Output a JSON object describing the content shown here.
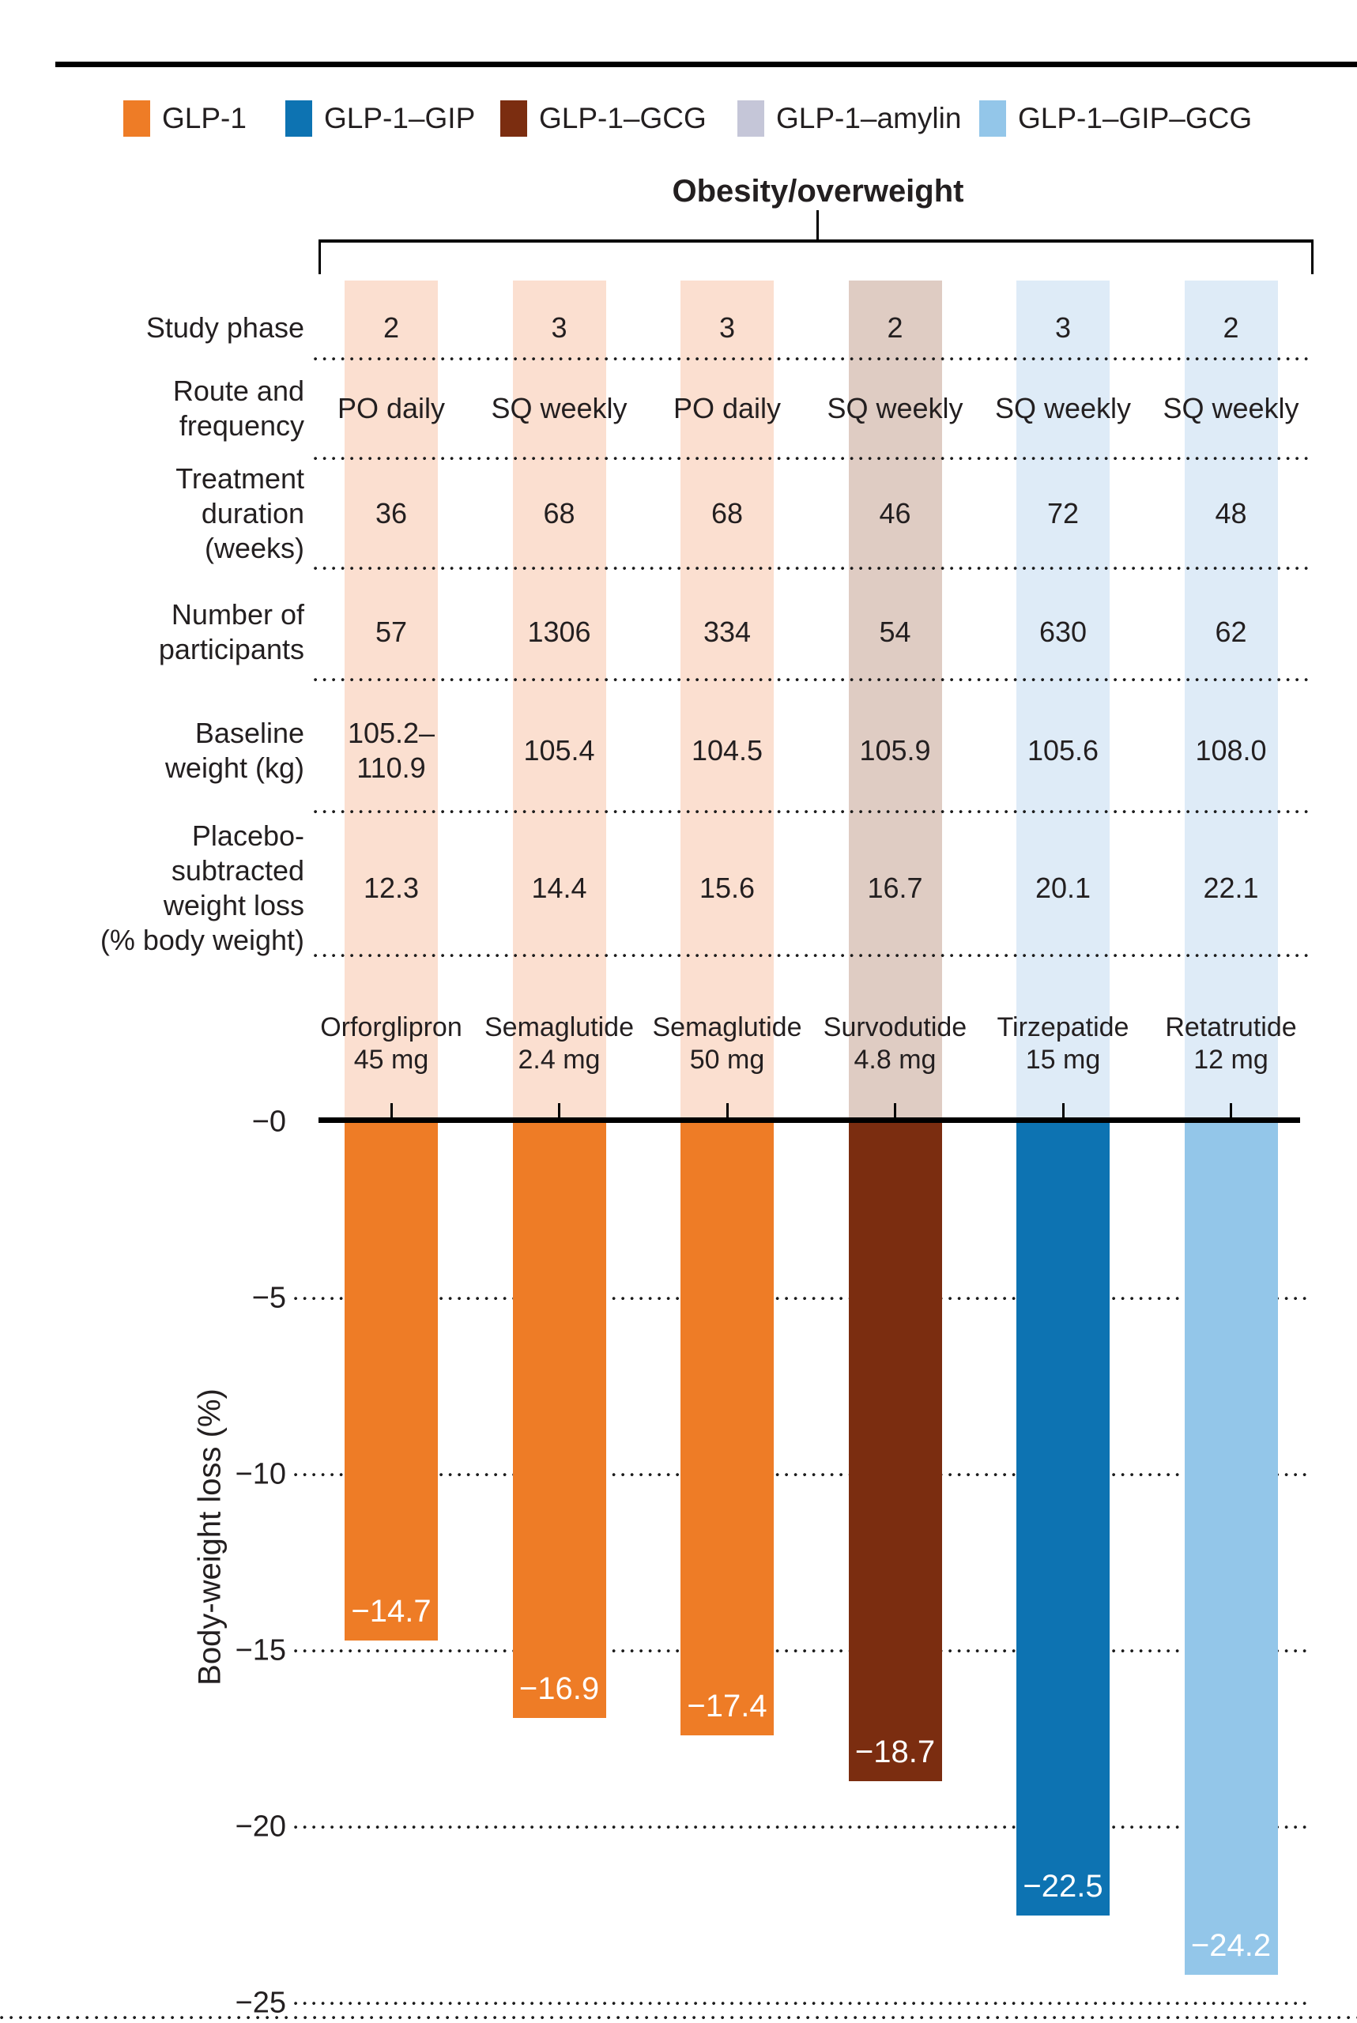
{
  "header": {
    "title": "Obesity/overweight"
  },
  "legend": {
    "items": [
      {
        "label": "GLP-1",
        "color": "#ee7c26"
      },
      {
        "label": "GLP-1–GIP",
        "color": "#0d73b2"
      },
      {
        "label": "GLP-1–GCG",
        "color": "#7b2d10"
      },
      {
        "label": "GLP-1–amylin",
        "color": "#c5c6d8"
      },
      {
        "label": "GLP-1–GIP–GCG",
        "color": "#93c6e9"
      }
    ]
  },
  "columns": [
    {
      "name": "Orforglipron",
      "dose": "45 mg",
      "drug_class": "GLP-1",
      "stripe_color": "#fbdfd0",
      "bar_color": "#ee7c26"
    },
    {
      "name": "Semaglutide",
      "dose": "2.4 mg",
      "drug_class": "GLP-1",
      "stripe_color": "#fbdfd0",
      "bar_color": "#ee7c26"
    },
    {
      "name": "Semaglutide",
      "dose": "50 mg",
      "drug_class": "GLP-1",
      "stripe_color": "#fbdfd0",
      "bar_color": "#ee7c26"
    },
    {
      "name": "Survodutide",
      "dose": "4.8 mg",
      "drug_class": "GLP-1–GCG",
      "stripe_color": "#dfccc3",
      "bar_color": "#7b2d10"
    },
    {
      "name": "Tirzepatide",
      "dose": "15 mg",
      "drug_class": "GLP-1–GIP",
      "stripe_color": "#deebf7",
      "bar_color": "#0d73b2"
    },
    {
      "name": "Retatrutide",
      "dose": "12 mg",
      "drug_class": "GLP-1–GIP–GCG",
      "stripe_color": "#deebf7",
      "bar_color": "#93c6e9"
    }
  ],
  "table": {
    "rows": [
      {
        "label": "Study phase",
        "values": [
          "2",
          "3",
          "3",
          "2",
          "3",
          "2"
        ]
      },
      {
        "label": "Route and\nfrequency",
        "values": [
          "PO daily",
          "SQ weekly",
          "PO daily",
          "SQ weekly",
          "SQ weekly",
          "SQ weekly"
        ]
      },
      {
        "label": "Treatment\nduration\n(weeks)",
        "values": [
          "36",
          "68",
          "68",
          "46",
          "72",
          "48"
        ]
      },
      {
        "label": "Number of\nparticipants",
        "values": [
          "57",
          "1306",
          "334",
          "54",
          "630",
          "62"
        ]
      },
      {
        "label": "Baseline\nweight (kg)",
        "values": [
          "105.2–\n110.9",
          "105.4",
          "104.5",
          "105.9",
          "105.6",
          "108.0"
        ]
      },
      {
        "label": "Placebo-\nsubtracted\nweight loss\n(% body weight)",
        "values": [
          "12.3",
          "14.4",
          "15.6",
          "16.7",
          "20.1",
          "22.1"
        ]
      }
    ]
  },
  "chart_data": {
    "type": "bar",
    "title": "Obesity/overweight",
    "ylabel": "Body-weight loss (%)",
    "categories": [
      "Orforglipron 45 mg",
      "Semaglutide 2.4 mg",
      "Semaglutide 50 mg",
      "Survodutide 4.8 mg",
      "Tirzepatide 15 mg",
      "Retatrutide 12 mg"
    ],
    "values": [
      -14.7,
      -16.9,
      -17.4,
      -18.7,
      -22.5,
      -24.2
    ],
    "bar_labels": [
      "−14.7",
      "−16.9",
      "−17.4",
      "−18.7",
      "−22.5",
      "−24.2"
    ],
    "series_class": [
      "GLP-1",
      "GLP-1",
      "GLP-1",
      "GLP-1–GCG",
      "GLP-1–GIP",
      "GLP-1–GIP–GCG"
    ],
    "bar_colors": [
      "#ee7c26",
      "#ee7c26",
      "#ee7c26",
      "#7b2d10",
      "#0d73b2",
      "#93c6e9"
    ],
    "ylim": [
      -25,
      0
    ],
    "ytick_values": [
      0,
      -5,
      -10,
      -15,
      -20,
      -25
    ],
    "ytick_labels": [
      "−0",
      "−5",
      "−10",
      "−15",
      "−20",
      "−25"
    ],
    "grid": "dotted horizontal gridlines at each tick below zero",
    "legend_position": "top-left"
  }
}
